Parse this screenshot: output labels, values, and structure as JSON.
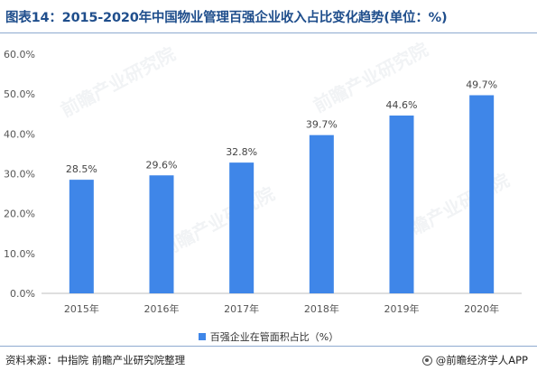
{
  "title": "图表14：2015-2020年中国物业管理百强企业收入占比变化趋势(单位：%)",
  "source": "资料来源：中指院 前瞻产业研究院整理",
  "brand": "@前瞻经济学人APP",
  "legend_label": "百强企业在管面积占比（%）",
  "colors": {
    "bar": "#3f86e8",
    "title": "#1f4e8c"
  },
  "chart_data": {
    "type": "bar",
    "categories": [
      "2015年",
      "2016年",
      "2017年",
      "2018年",
      "2019年",
      "2020年"
    ],
    "values": [
      28.5,
      29.6,
      32.8,
      39.7,
      44.6,
      49.7
    ],
    "value_labels": [
      "28.5%",
      "29.6%",
      "32.8%",
      "39.7%",
      "44.6%",
      "49.7%"
    ],
    "yticks": [
      "0.0%",
      "10.0%",
      "20.0%",
      "30.0%",
      "40.0%",
      "50.0%",
      "60.0%"
    ],
    "ylim": [
      0,
      60
    ],
    "grid": false,
    "legend": "bottom"
  }
}
